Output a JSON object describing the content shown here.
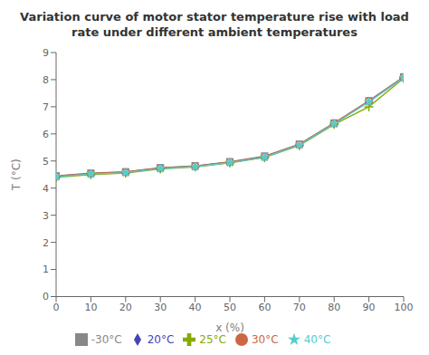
{
  "chart_data": {
    "type": "line",
    "title": "Variation curve of motor stator temperature rise with load\nrate under different ambient temperatures",
    "x_label": "x (%)",
    "y_label": "T (°C)",
    "x": [
      0,
      10,
      20,
      30,
      40,
      50,
      60,
      70,
      80,
      90,
      100
    ],
    "xlim": [
      0,
      100
    ],
    "xticks": [
      0,
      10,
      20,
      30,
      40,
      50,
      60,
      70,
      80,
      90,
      100
    ],
    "ylim": [
      0,
      9
    ],
    "yticks": [
      0,
      1,
      2,
      3,
      4,
      5,
      6,
      7,
      8,
      9
    ],
    "grid": false,
    "legend": "bottom",
    "series": [
      {
        "name": "-30°C",
        "color": "#888888",
        "marker": "square",
        "line_style": "solid",
        "values": [
          4.45,
          4.55,
          4.6,
          4.75,
          4.82,
          4.97,
          5.18,
          5.62,
          6.4,
          7.22,
          8.1
        ]
      },
      {
        "name": "20°C",
        "color": "#4444bb",
        "marker": "diamond",
        "line_style": "solid",
        "values": [
          4.43,
          4.53,
          4.58,
          4.73,
          4.8,
          4.95,
          5.15,
          5.6,
          6.38,
          7.2,
          8.08
        ]
      },
      {
        "name": "25°C",
        "color": "#88aa00",
        "marker": "plus",
        "line_style": "solid",
        "values": [
          4.4,
          4.5,
          4.56,
          4.71,
          4.78,
          4.93,
          5.13,
          5.57,
          6.35,
          7.0,
          8.05
        ]
      },
      {
        "name": "30°C",
        "color": "#cc6644",
        "marker": "circle",
        "line_style": "solid",
        "values": [
          4.44,
          4.54,
          4.59,
          4.74,
          4.81,
          4.96,
          5.16,
          5.61,
          6.39,
          7.21,
          8.09
        ]
      },
      {
        "name": "40°C",
        "color": "#55cccc",
        "marker": "star",
        "line_style": "solid",
        "values": [
          4.42,
          4.52,
          4.57,
          4.72,
          4.79,
          4.94,
          5.14,
          5.59,
          6.37,
          7.18,
          8.07
        ]
      }
    ]
  }
}
